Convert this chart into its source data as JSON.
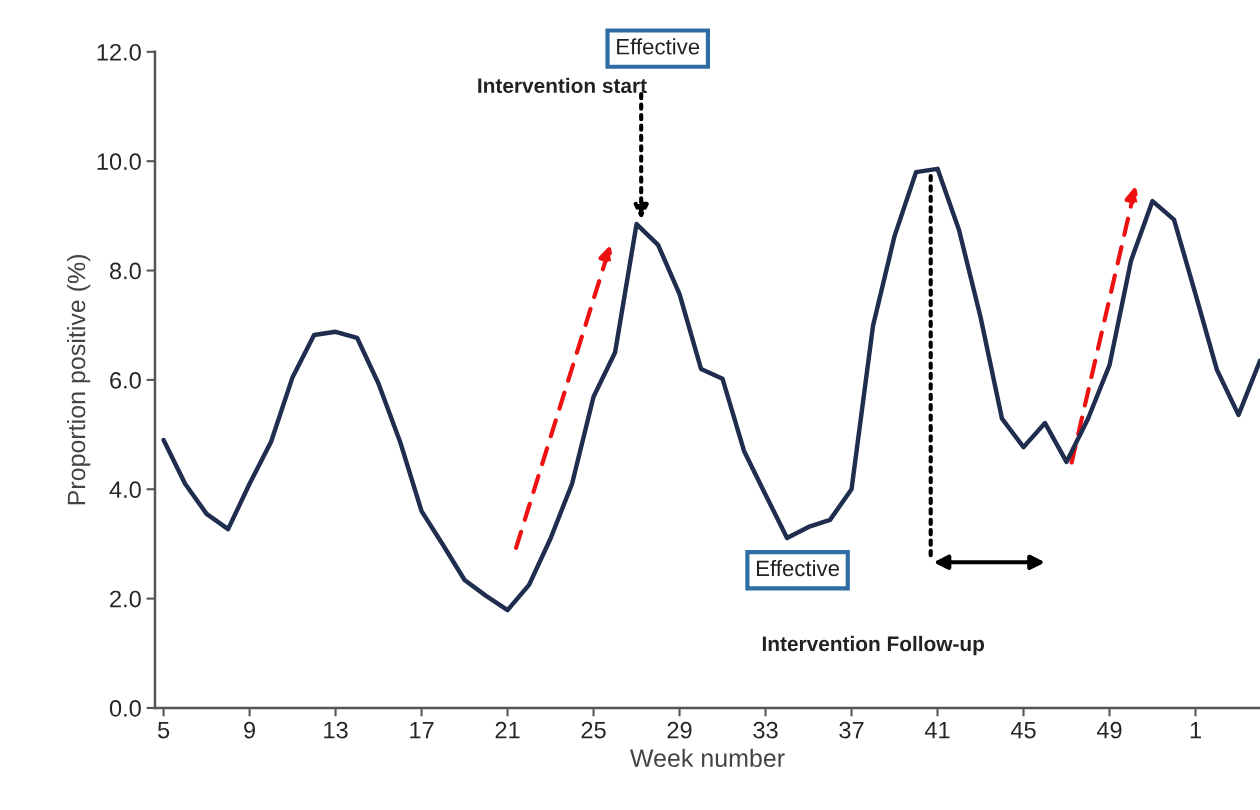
{
  "chart_data": {
    "type": "line",
    "xlabel": "Week number",
    "ylabel": "Proportion positive (%)",
    "categories": [
      "5",
      null,
      null,
      null,
      "9",
      null,
      null,
      null,
      "13",
      null,
      null,
      null,
      "17",
      null,
      null,
      null,
      "21",
      null,
      null,
      null,
      "25",
      null,
      null,
      null,
      "29",
      null,
      null,
      null,
      "33",
      null,
      null,
      null,
      "37",
      null,
      null,
      null,
      "41",
      null,
      null,
      null,
      "45",
      null,
      null,
      null,
      "49",
      null,
      null,
      null,
      "1",
      null,
      null,
      null
    ],
    "series": [
      {
        "color": "#1f2d4e",
        "values": [
          4.9,
          4.1,
          3.55,
          3.27,
          4.1,
          4.87,
          6.05,
          6.82,
          6.88,
          6.77,
          5.93,
          4.87,
          3.6,
          2.98,
          2.34,
          2.05,
          1.79,
          2.25,
          3.1,
          4.1,
          5.69,
          6.5,
          8.85,
          8.47,
          7.57,
          6.2,
          6.02,
          4.7,
          3.9,
          3.11,
          3.31,
          3.44,
          4.0,
          6.99,
          8.63,
          9.8,
          9.86,
          8.74,
          7.15,
          5.29,
          4.77,
          5.21,
          4.5,
          5.29,
          6.27,
          8.18,
          9.27,
          8.93,
          7.57,
          6.18,
          5.36,
          6.35
        ]
      }
    ],
    "ylim": [
      0,
      12
    ],
    "yticks": [
      {
        "value": 0,
        "label": "0.0"
      },
      {
        "value": 2,
        "label": "2.0"
      },
      {
        "value": 4,
        "label": "4.0"
      },
      {
        "value": 6,
        "label": "6.0"
      },
      {
        "value": 8,
        "label": "8.0"
      },
      {
        "value": 10,
        "label": "10.0"
      },
      {
        "value": 12,
        "label": "12.0"
      }
    ],
    "marker": "none",
    "line_style": "solid",
    "annotations": [
      "Effective",
      "Intervention start",
      "Effective",
      "Intervention Follow-up"
    ]
  }
}
